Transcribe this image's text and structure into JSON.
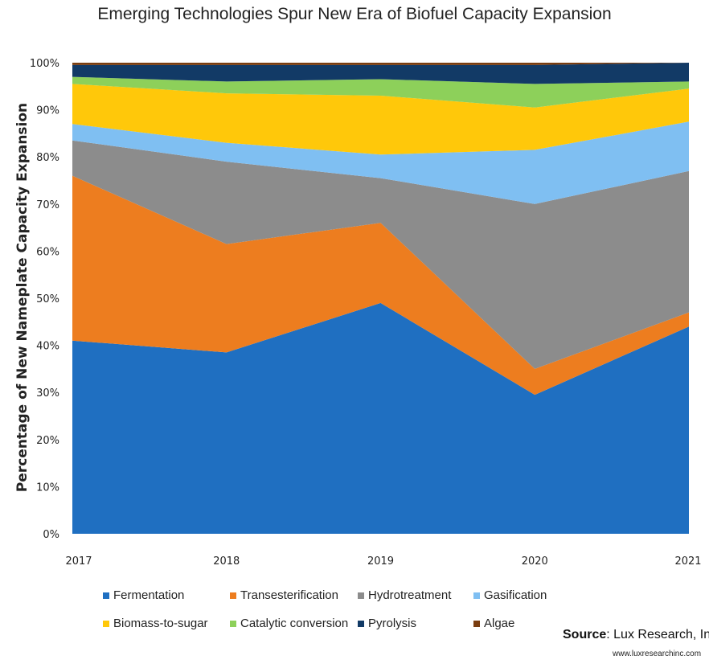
{
  "chart_data": {
    "type": "area",
    "stacked": true,
    "normalized": true,
    "title": "Emerging Technologies Spur New Era of Biofuel Capacity Expansion",
    "ylabel": "Percentage of New Nameplate Capacity Expansion",
    "x": [
      "2017",
      "2018",
      "2019",
      "2020",
      "2021"
    ],
    "yticks": [
      "0%",
      "10%",
      "20%",
      "30%",
      "40%",
      "50%",
      "60%",
      "70%",
      "80%",
      "90%",
      "100%"
    ],
    "ylim": [
      0,
      100
    ],
    "grid": false,
    "legend_position": "bottom",
    "series": [
      {
        "name": "Fermentation",
        "color": "#1f6fc1",
        "values": [
          41,
          38.5,
          49,
          29.5,
          44
        ]
      },
      {
        "name": "Transesterification",
        "color": "#ed7d1f",
        "values": [
          35,
          23,
          17,
          5.5,
          3
        ]
      },
      {
        "name": "Hydrotreatment",
        "color": "#8c8c8c",
        "values": [
          7.5,
          17.5,
          9.5,
          35,
          30
        ]
      },
      {
        "name": "Gasification",
        "color": "#7fbff2",
        "values": [
          3.5,
          4,
          5,
          11.5,
          10.5
        ]
      },
      {
        "name": "Biomass-to-sugar",
        "color": "#ffc80a",
        "values": [
          8.5,
          10.5,
          12.5,
          9,
          7
        ]
      },
      {
        "name": "Catalytic conversion",
        "color": "#8dd05a",
        "values": [
          1.5,
          2.5,
          3.5,
          5,
          1.5
        ]
      },
      {
        "name": "Pyrolysis",
        "color": "#123a66",
        "values": [
          2.5,
          3.5,
          3,
          4,
          4
        ]
      },
      {
        "name": "Algae",
        "color": "#7a3d10",
        "values": [
          0.5,
          0.5,
          0.5,
          0.5,
          0
        ]
      }
    ]
  },
  "source": {
    "label": "Source",
    "text": ": Lux Research, Inc",
    "url": "www.luxresearchinc.com"
  }
}
